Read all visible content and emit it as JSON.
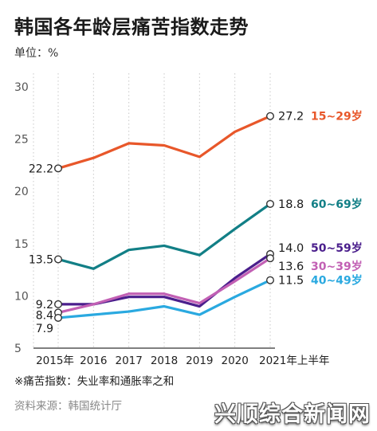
{
  "title": "韩国各年龄层痛苦指数走势",
  "unit_label": "单位：%",
  "note": "※痛苦指数：失业率和通胀率之和",
  "source": "资料来源：韩国统计厅",
  "watermark": "兴顺综合新闻网",
  "chart_data": {
    "type": "line",
    "categories": [
      "2015年",
      "2016",
      "2017",
      "2018",
      "2019",
      "2020",
      "2021年上半年"
    ],
    "ylim": [
      5,
      30
    ],
    "yticks": [
      5,
      10,
      15,
      20,
      25,
      30
    ],
    "grid": "vertical dotted",
    "series": [
      {
        "name": "15~29岁",
        "color": "#e8572a",
        "values": [
          22.2,
          23.2,
          24.6,
          24.4,
          23.3,
          25.7,
          27.2
        ],
        "start_label": "22.2",
        "end_label": "27.2"
      },
      {
        "name": "60~69岁",
        "color": "#127f86",
        "values": [
          13.5,
          12.6,
          14.4,
          14.8,
          13.9,
          16.4,
          18.8
        ],
        "start_label": "13.5",
        "end_label": "18.8"
      },
      {
        "name": "50~59岁",
        "color": "#4a1e8c",
        "values": [
          9.2,
          9.2,
          9.9,
          9.9,
          9.0,
          11.7,
          14.0
        ],
        "start_label": "9.2",
        "end_label": "14.0"
      },
      {
        "name": "30~39岁",
        "color": "#c260b4",
        "values": [
          8.4,
          9.2,
          10.2,
          10.2,
          9.3,
          11.4,
          13.6
        ],
        "start_label": "8.4",
        "end_label": "13.6"
      },
      {
        "name": "40~49岁",
        "color": "#2aa9e0",
        "values": [
          7.9,
          8.2,
          8.5,
          9.0,
          8.2,
          9.9,
          11.5
        ],
        "start_label": "7.9",
        "end_label": "11.5"
      }
    ]
  }
}
